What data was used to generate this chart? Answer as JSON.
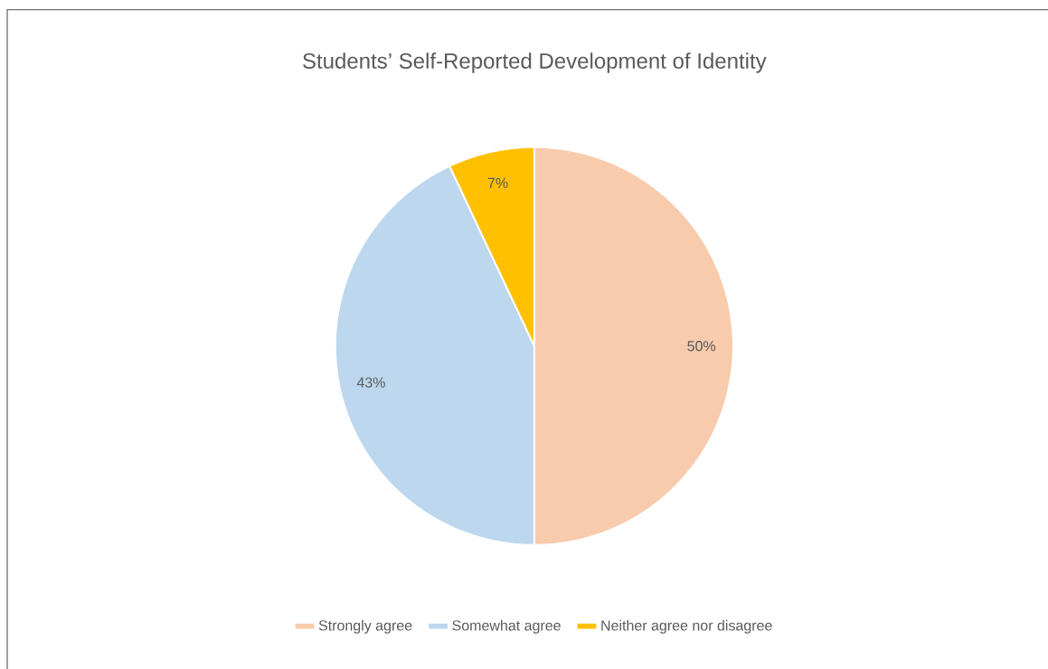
{
  "chart_data": {
    "type": "pie",
    "title": "Students’ Self-Reported Development of Identity",
    "categories": [
      "Strongly agree",
      "Somewhat agree",
      "Neither agree nor disagree"
    ],
    "values": [
      50,
      43,
      7
    ],
    "colors": [
      "#f8cbad",
      "#bdd7ee",
      "#ffc000"
    ],
    "value_labels": [
      "50%",
      "43%",
      "7%"
    ],
    "legend": "bottom"
  }
}
